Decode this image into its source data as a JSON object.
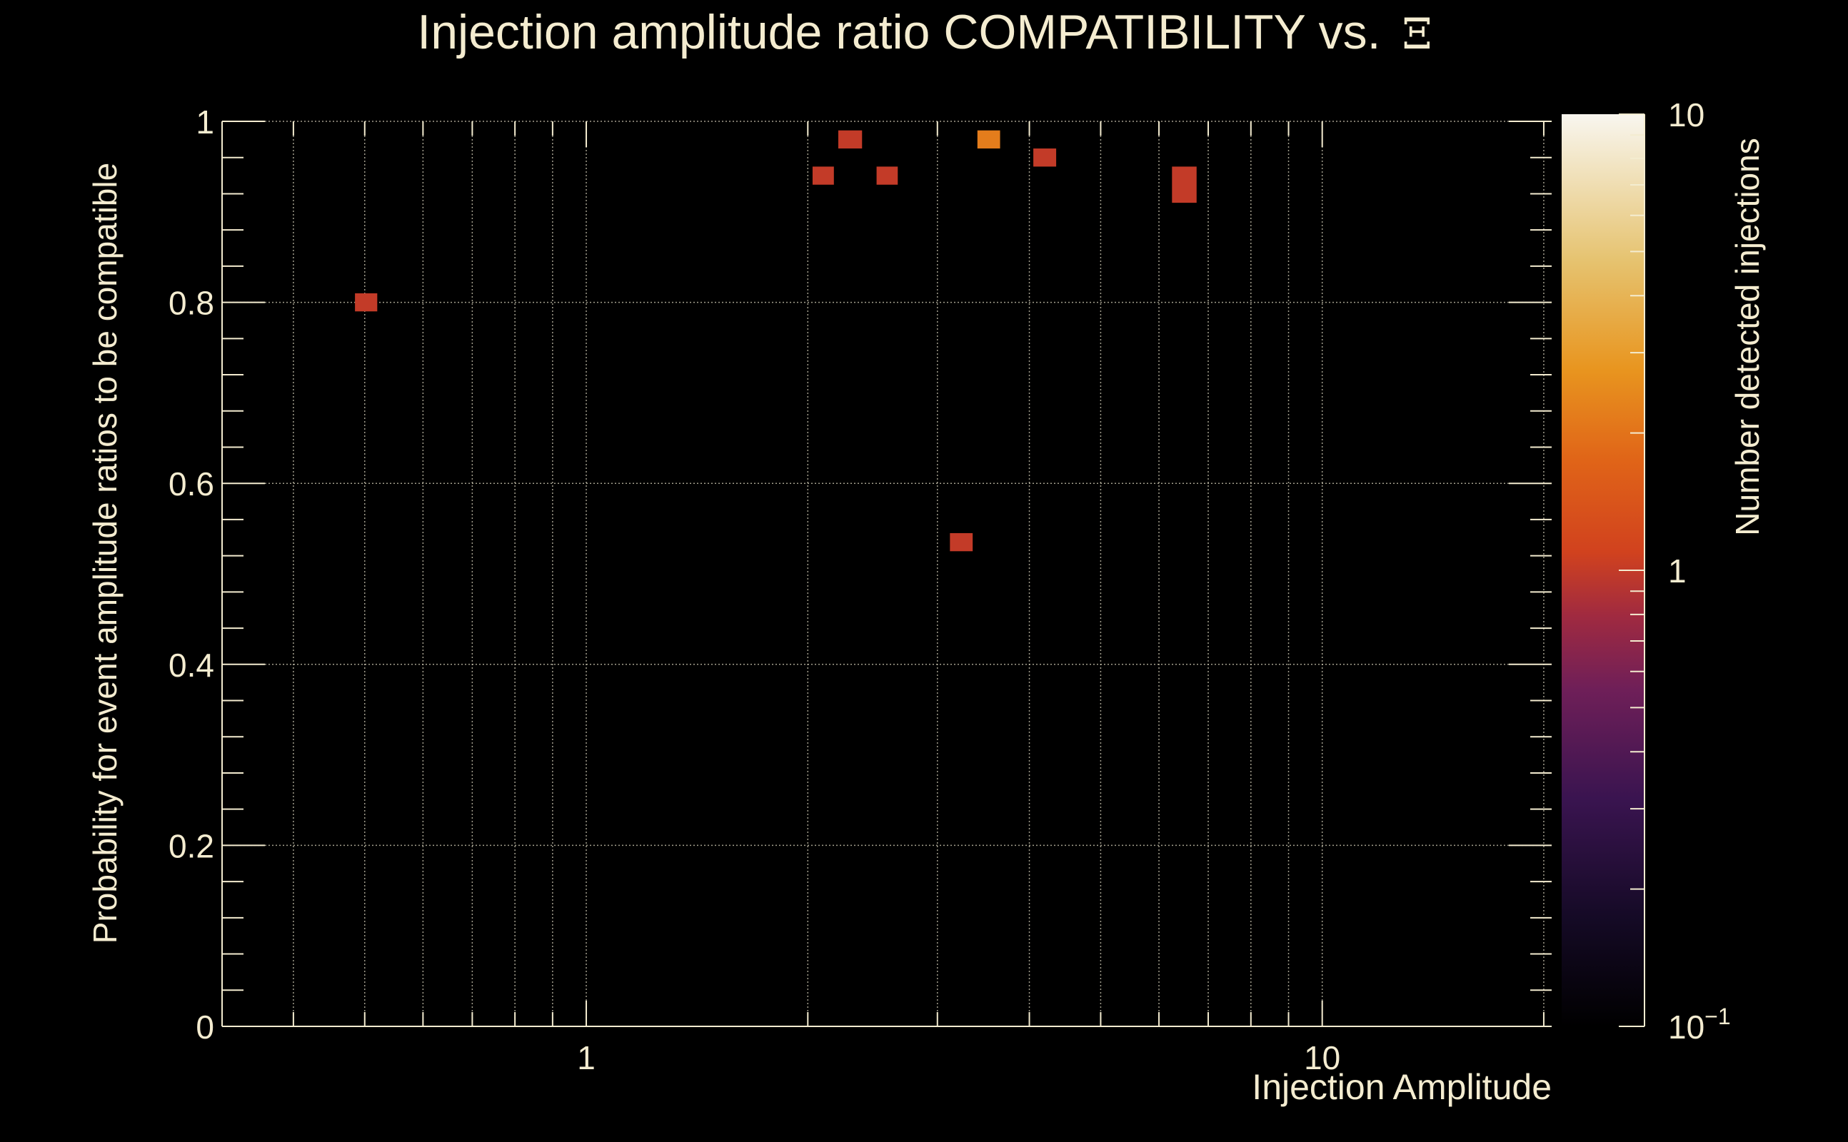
{
  "chart_data": {
    "type": "heatmap",
    "title_text": "Injection amplitude ratio COMPATIBILITY vs.",
    "title_symbol": "Ξ",
    "xlabel": "Injection Amplitude",
    "ylabel": "Probability for event amplitude ratios to be compatible",
    "zlabel": "Number detected injections",
    "x_scale": "log",
    "xlim": [
      0.32,
      20.5
    ],
    "ylim": [
      0,
      1
    ],
    "zlim": [
      0.1,
      10
    ],
    "z_scale": "log",
    "grid": true,
    "x_tick_labels": [
      {
        "value": 1,
        "label": "1"
      },
      {
        "value": 10,
        "label": "10"
      }
    ],
    "y_tick_labels": [
      {
        "value": 0,
        "label": "0"
      },
      {
        "value": 0.2,
        "label": "0.2"
      },
      {
        "value": 0.4,
        "label": "0.4"
      },
      {
        "value": 0.6,
        "label": "0.6"
      },
      {
        "value": 0.8,
        "label": "0.8"
      },
      {
        "value": 1,
        "label": "1"
      }
    ],
    "z_tick_labels": [
      {
        "value": 0.1,
        "label": "10",
        "exponent": "−1"
      },
      {
        "value": 1,
        "label": "1",
        "exponent": ""
      },
      {
        "value": 10,
        "label": "10",
        "exponent": ""
      }
    ],
    "cells": [
      {
        "x0": 0.485,
        "x1": 0.52,
        "y0": 0.79,
        "y1": 0.81,
        "z": 1
      },
      {
        "x0": 2.03,
        "x1": 2.17,
        "y0": 0.93,
        "y1": 0.95,
        "z": 1
      },
      {
        "x0": 2.2,
        "x1": 2.37,
        "y0": 0.97,
        "y1": 0.99,
        "z": 1
      },
      {
        "x0": 2.48,
        "x1": 2.65,
        "y0": 0.93,
        "y1": 0.95,
        "z": 1
      },
      {
        "x0": 3.12,
        "x1": 3.35,
        "y0": 0.525,
        "y1": 0.545,
        "z": 1
      },
      {
        "x0": 3.4,
        "x1": 3.65,
        "y0": 0.97,
        "y1": 0.99,
        "z": 2.2
      },
      {
        "x0": 4.05,
        "x1": 4.35,
        "y0": 0.95,
        "y1": 0.97,
        "z": 1
      },
      {
        "x0": 6.25,
        "x1": 6.75,
        "y0": 0.91,
        "y1": 0.95,
        "z": 1
      }
    ]
  },
  "colors": {
    "background": "#000000",
    "foreground": "#f4ecd0",
    "grid": "#d9d3bd",
    "colormap": [
      "#000004",
      "#1f0c48",
      "#550f6d",
      "#88226a",
      "#ba3655",
      "#e35933",
      "#f98e09",
      "#f6c746",
      "#fcffa4"
    ]
  }
}
